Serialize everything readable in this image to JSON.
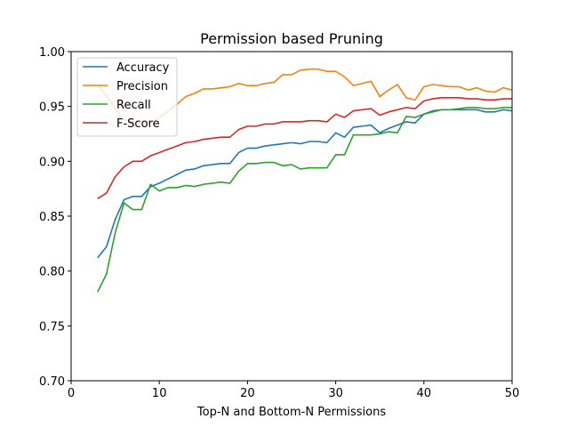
{
  "chart_data": {
    "type": "line",
    "title": "Permission based Pruning",
    "xlabel": "Top-N and Bottom-N Permissions",
    "ylabel": "",
    "xlim": [
      0,
      50
    ],
    "ylim": [
      0.7,
      1.0
    ],
    "xticks": [
      0,
      10,
      20,
      30,
      40,
      50
    ],
    "yticks": [
      0.7,
      0.75,
      0.8,
      0.85,
      0.9,
      0.95,
      1.0
    ],
    "grid": false,
    "legend_position": "top-left",
    "x": [
      3,
      4,
      5,
      6,
      7,
      8,
      9,
      10,
      11,
      12,
      13,
      14,
      15,
      16,
      17,
      18,
      19,
      20,
      21,
      22,
      23,
      24,
      25,
      26,
      27,
      28,
      29,
      30,
      31,
      32,
      33,
      34,
      35,
      36,
      37,
      38,
      39,
      40,
      41,
      42,
      43,
      44,
      45,
      46,
      47,
      48,
      49,
      50
    ],
    "series": [
      {
        "name": "Accuracy",
        "color": "#1f77b4",
        "values": [
          0.812,
          0.822,
          0.847,
          0.865,
          0.868,
          0.868,
          0.877,
          0.88,
          0.884,
          0.888,
          0.892,
          0.893,
          0.896,
          0.897,
          0.898,
          0.898,
          0.908,
          0.912,
          0.912,
          0.914,
          0.915,
          0.916,
          0.917,
          0.916,
          0.918,
          0.918,
          0.917,
          0.926,
          0.922,
          0.931,
          0.932,
          0.933,
          0.926,
          0.93,
          0.933,
          0.936,
          0.935,
          0.943,
          0.946,
          0.947,
          0.947,
          0.947,
          0.947,
          0.947,
          0.945,
          0.945,
          0.947,
          0.946
        ]
      },
      {
        "name": "Precision",
        "color": "#ff7f0e",
        "values": [
          0.97,
          0.96,
          0.948,
          0.938,
          0.936,
          0.936,
          0.935,
          0.94,
          0.946,
          0.952,
          0.959,
          0.962,
          0.966,
          0.966,
          0.967,
          0.968,
          0.971,
          0.969,
          0.969,
          0.971,
          0.972,
          0.979,
          0.979,
          0.983,
          0.984,
          0.984,
          0.982,
          0.982,
          0.977,
          0.969,
          0.971,
          0.973,
          0.959,
          0.965,
          0.97,
          0.958,
          0.956,
          0.968,
          0.97,
          0.969,
          0.968,
          0.968,
          0.965,
          0.967,
          0.964,
          0.963,
          0.967,
          0.965
        ]
      },
      {
        "name": "Recall",
        "color": "#2ca02c",
        "values": [
          0.781,
          0.797,
          0.835,
          0.862,
          0.856,
          0.856,
          0.879,
          0.873,
          0.876,
          0.876,
          0.878,
          0.877,
          0.879,
          0.88,
          0.881,
          0.88,
          0.891,
          0.898,
          0.898,
          0.899,
          0.899,
          0.896,
          0.897,
          0.893,
          0.894,
          0.894,
          0.894,
          0.906,
          0.906,
          0.924,
          0.924,
          0.924,
          0.925,
          0.927,
          0.926,
          0.941,
          0.94,
          0.943,
          0.945,
          0.947,
          0.947,
          0.948,
          0.949,
          0.949,
          0.948,
          0.948,
          0.949,
          0.949
        ]
      },
      {
        "name": "F-Score",
        "color": "#d62728",
        "values": [
          0.866,
          0.871,
          0.886,
          0.895,
          0.9,
          0.9,
          0.905,
          0.908,
          0.911,
          0.914,
          0.917,
          0.918,
          0.92,
          0.921,
          0.922,
          0.922,
          0.929,
          0.932,
          0.932,
          0.934,
          0.934,
          0.936,
          0.936,
          0.936,
          0.937,
          0.937,
          0.936,
          0.943,
          0.94,
          0.946,
          0.947,
          0.948,
          0.942,
          0.945,
          0.947,
          0.949,
          0.948,
          0.955,
          0.957,
          0.958,
          0.958,
          0.958,
          0.957,
          0.957,
          0.956,
          0.956,
          0.957,
          0.957
        ]
      }
    ]
  }
}
